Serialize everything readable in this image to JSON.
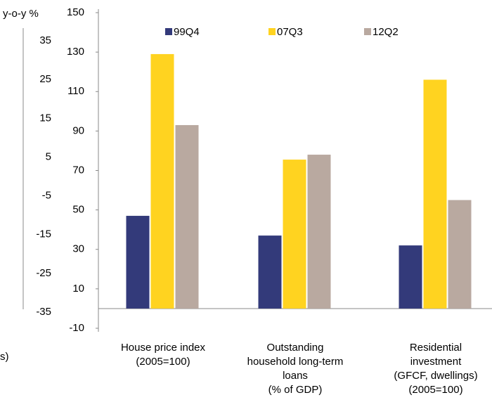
{
  "chart_data": [
    {
      "type": "axis",
      "ylabel": "y-o-y %",
      "ylim": [
        -35,
        35
      ],
      "yticks": [
        35,
        25,
        15,
        5,
        -5,
        -15,
        -25,
        -35
      ],
      "annotation": "s)"
    },
    {
      "type": "bar",
      "categories": [
        [
          "House price index",
          "(2005=100)"
        ],
        [
          "Outstanding",
          "household long-term",
          "loans",
          "(% of GDP)"
        ],
        [
          "Residential",
          "investment",
          "(GFCF, dwellings)",
          "(2005=100)"
        ]
      ],
      "series": [
        {
          "name": "99Q4",
          "color": "#333a7a",
          "values": [
            47,
            37,
            32
          ]
        },
        {
          "name": "07Q3",
          "color": "#ffd320",
          "values": [
            129,
            75.5,
            116
          ]
        },
        {
          "name": "12Q2",
          "color": "#b9a9a0",
          "values": [
            93,
            78,
            55
          ]
        }
      ],
      "ylim": [
        -10,
        150
      ],
      "yticks": [
        150,
        130,
        110,
        90,
        70,
        50,
        30,
        10,
        -10
      ]
    }
  ]
}
